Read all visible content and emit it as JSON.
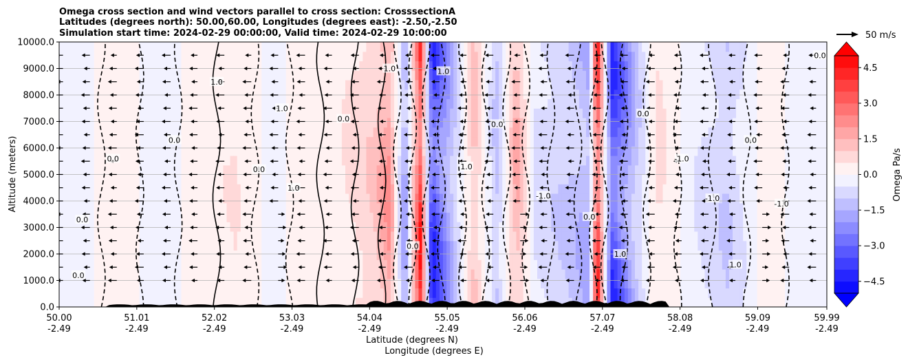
{
  "chart_data": {
    "type": "heatmap",
    "title_lines": [
      "Omega cross section and wind vectors parallel to cross section: CrosssectionA",
      "Latitudes (degrees north): 50.00,60.00, Longitudes (degrees east): -2.50,-2.50",
      "Simulation start time: 2024-02-29 00:00:00, Valid time: 2024-02-29 10:00:00"
    ],
    "ylabel": "Altitude (meters)",
    "xlabel_line1": "Latitude (degrees N)",
    "xlabel_line2": "Longitude (degrees E)",
    "xlim": [
      50.0,
      59.99
    ],
    "ylim": [
      0,
      10000
    ],
    "yticks": [
      0,
      1000,
      2000,
      3000,
      4000,
      5000,
      6000,
      7000,
      8000,
      9000,
      10000
    ],
    "ytick_labels": [
      "0.0",
      "1000.0",
      "2000.0",
      "3000.0",
      "4000.0",
      "5000.0",
      "6000.0",
      "7000.0",
      "8000.0",
      "9000.0",
      "10000.0"
    ],
    "xticks": [
      50.0,
      51.01,
      52.02,
      53.03,
      54.04,
      55.05,
      56.06,
      57.07,
      58.08,
      59.09,
      59.99
    ],
    "xtick_lat_labels": [
      "50.00",
      "51.01",
      "52.02",
      "53.03",
      "54.04",
      "55.05",
      "56.06",
      "57.07",
      "58.08",
      "59.09",
      "59.99"
    ],
    "xtick_lon_labels": [
      "-2.49",
      "-2.49",
      "-2.49",
      "-2.49",
      "-2.49",
      "-2.49",
      "-2.49",
      "-2.49",
      "-2.49",
      "-2.49",
      "-2.49"
    ],
    "grid": true,
    "colorbar": {
      "label": "Omega Pa/s",
      "min": -5.0,
      "max": 5.0,
      "ticks": [
        -4.5,
        -3.0,
        -1.5,
        0.0,
        1.5,
        3.0,
        4.5
      ],
      "tick_labels": [
        "−4.5",
        "−3.0",
        "−1.5",
        "0.0",
        "1.5",
        "3.0",
        "4.5"
      ],
      "extend": "both",
      "cmap": "bwr",
      "low_color": "#0000ff",
      "mid_color": "#ffffff",
      "high_color": "#ff0000"
    },
    "quiver_key": {
      "label": "50 m/s",
      "speed": 50
    },
    "contour_levels": [
      -1.0,
      0.0,
      1.0
    ],
    "contour_label_texts": [
      "0.0",
      "1.0",
      "-1.0"
    ],
    "omega_columns": [
      {
        "lat": 50.3,
        "omega": -0.2
      },
      {
        "lat": 50.8,
        "omega": 0.4
      },
      {
        "lat": 51.3,
        "omega": -0.4
      },
      {
        "lat": 51.8,
        "omega": 0.3
      },
      {
        "lat": 52.3,
        "omega": 0.6
      },
      {
        "lat": 52.8,
        "omega": -0.3
      },
      {
        "lat": 53.2,
        "omega": 0.5
      },
      {
        "lat": 53.6,
        "omega": 0.4
      },
      {
        "lat": 54.1,
        "omega": 1.2
      },
      {
        "lat": 54.3,
        "omega": 2.5
      },
      {
        "lat": 54.5,
        "omega": -2.5
      },
      {
        "lat": 54.7,
        "omega": 4.8
      },
      {
        "lat": 54.85,
        "omega": -4.8
      },
      {
        "lat": 55.1,
        "omega": -2.0
      },
      {
        "lat": 55.4,
        "omega": 1.5
      },
      {
        "lat": 55.7,
        "omega": -1.5
      },
      {
        "lat": 55.95,
        "omega": 2.0
      },
      {
        "lat": 56.2,
        "omega": -0.8
      },
      {
        "lat": 56.6,
        "omega": -1.2
      },
      {
        "lat": 56.9,
        "omega": -2.0
      },
      {
        "lat": 57.0,
        "omega": 4.8
      },
      {
        "lat": 57.2,
        "omega": -4.5
      },
      {
        "lat": 57.5,
        "omega": -1.5
      },
      {
        "lat": 57.8,
        "omega": 0.8
      },
      {
        "lat": 58.3,
        "omega": -0.6
      },
      {
        "lat": 58.7,
        "omega": -1.2
      },
      {
        "lat": 59.2,
        "omega": 0.3
      },
      {
        "lat": 59.7,
        "omega": -0.3
      }
    ]
  }
}
